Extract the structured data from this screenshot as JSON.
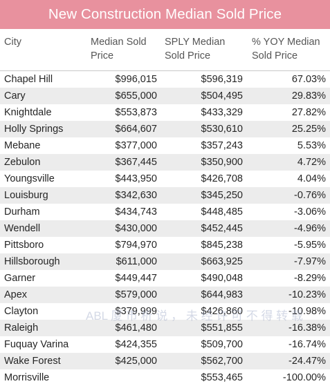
{
  "title": "New Construction Median Sold Price",
  "columns": [
    {
      "line1": "City",
      "line2": ""
    },
    {
      "line1": "Median Sold",
      "line2": "Price"
    },
    {
      "line1": "SPLY Median",
      "line2": "Sold Price"
    },
    {
      "line1": "% YOY Median",
      "line2": "Sold Price"
    }
  ],
  "sort": {
    "column": "% YOY Median Sold Price",
    "direction": "descending",
    "icon": "sort-down-icon"
  },
  "rows": [
    {
      "city": "Chapel Hill",
      "median": "$996,015",
      "sply": "$596,319",
      "yoy": "67.03%"
    },
    {
      "city": "Cary",
      "median": "$655,000",
      "sply": "$504,495",
      "yoy": "29.83%"
    },
    {
      "city": "Knightdale",
      "median": "$553,873",
      "sply": "$433,329",
      "yoy": "27.82%"
    },
    {
      "city": "Holly Springs",
      "median": "$664,607",
      "sply": "$530,610",
      "yoy": "25.25%"
    },
    {
      "city": "Mebane",
      "median": "$377,000",
      "sply": "$357,243",
      "yoy": "5.53%"
    },
    {
      "city": "Zebulon",
      "median": "$367,445",
      "sply": "$350,900",
      "yoy": "4.72%"
    },
    {
      "city": "Youngsville",
      "median": "$443,950",
      "sply": "$426,708",
      "yoy": "4.04%"
    },
    {
      "city": "Louisburg",
      "median": "$342,630",
      "sply": "$345,250",
      "yoy": "-0.76%"
    },
    {
      "city": "Durham",
      "median": "$434,743",
      "sply": "$448,485",
      "yoy": "-3.06%"
    },
    {
      "city": "Wendell",
      "median": "$430,000",
      "sply": "$452,445",
      "yoy": "-4.96%"
    },
    {
      "city": "Pittsboro",
      "median": "$794,970",
      "sply": "$845,238",
      "yoy": "-5.95%"
    },
    {
      "city": "Hillsborough",
      "median": "$611,000",
      "sply": "$663,925",
      "yoy": "-7.97%"
    },
    {
      "city": "Garner",
      "median": "$449,447",
      "sply": "$490,048",
      "yoy": "-8.29%"
    },
    {
      "city": "Apex",
      "median": "$579,000",
      "sply": "$644,983",
      "yoy": "-10.23%"
    },
    {
      "city": "Clayton",
      "median": "$379,999",
      "sply": "$426,860",
      "yoy": "-10.98%"
    },
    {
      "city": "Raleigh",
      "median": "$461,480",
      "sply": "$551,855",
      "yoy": "-16.38%"
    },
    {
      "city": "Fuquay Varina",
      "median": "$424,355",
      "sply": "$509,700",
      "yoy": "-16.74%"
    },
    {
      "city": "Wake Forest",
      "median": "$425,000",
      "sply": "$562,700",
      "yoy": "-24.47%"
    },
    {
      "city": "Morrisville",
      "median": "",
      "sply": "$553,465",
      "yoy": "-100.00%"
    }
  ],
  "watermark": "ABL  厦  市  析  说  ，  未  经  许  可  不  得  转  载"
}
